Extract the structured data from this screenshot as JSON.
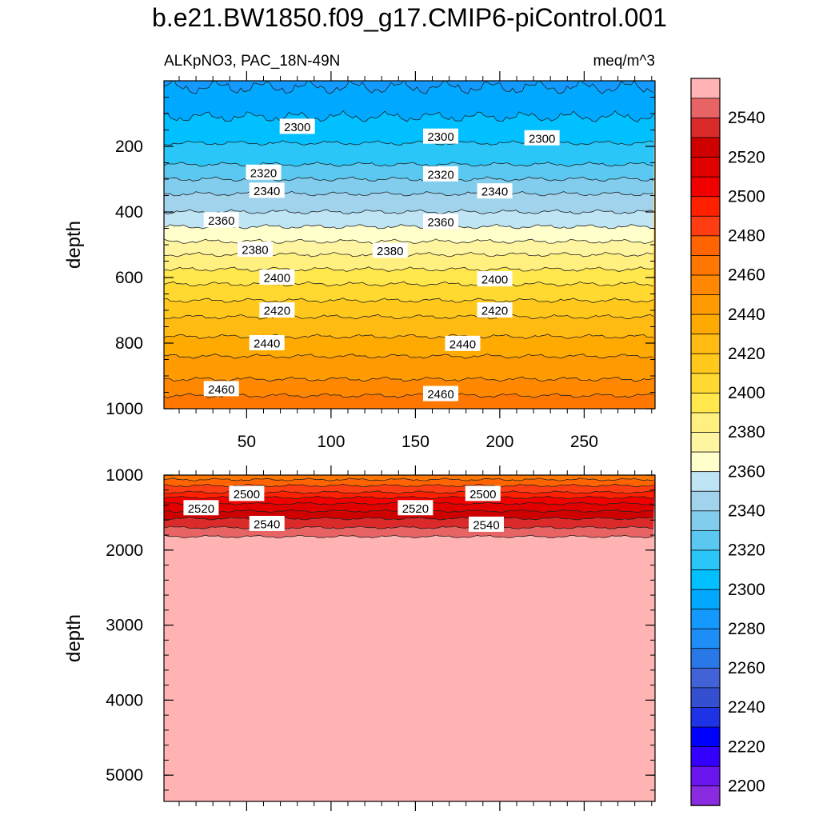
{
  "title": "b.e21.BW1850.f09_g17.CMIP6-piControl.001",
  "chart_data": [
    {
      "type": "contour",
      "panel": "upper",
      "subtitle_left": "ALKpNO3, PAC_18N-49N",
      "subtitle_right": "meq/m^3",
      "xlabel": "",
      "ylabel": "depth",
      "xlim": [
        1,
        292
      ],
      "ylim": [
        0,
        1000
      ],
      "y_inverted": true,
      "x_ticks": [
        "50",
        "100",
        "150",
        "200",
        "250"
      ],
      "y_ticks": [
        "200",
        "400",
        "600",
        "800",
        "1000"
      ],
      "contour_levels": [
        2290,
        2300,
        2310,
        2320,
        2330,
        2340,
        2350,
        2360,
        2370,
        2380,
        2390,
        2400,
        2410,
        2420,
        2430,
        2440,
        2450,
        2460
      ],
      "level_depths": [
        20,
        110,
        190,
        255,
        300,
        345,
        400,
        445,
        490,
        530,
        575,
        620,
        670,
        720,
        780,
        840,
        910,
        960
      ],
      "contour_labels": [
        {
          "text": "2300",
          "x": 80,
          "y": 140
        },
        {
          "text": "2300",
          "x": 165,
          "y": 170
        },
        {
          "text": "2300",
          "x": 225,
          "y": 175
        },
        {
          "text": "2320",
          "x": 60,
          "y": 280
        },
        {
          "text": "2320",
          "x": 165,
          "y": 285
        },
        {
          "text": "2340",
          "x": 62,
          "y": 335
        },
        {
          "text": "2340",
          "x": 197,
          "y": 337
        },
        {
          "text": "2360",
          "x": 35,
          "y": 425
        },
        {
          "text": "2360",
          "x": 165,
          "y": 430
        },
        {
          "text": "2380",
          "x": 55,
          "y": 515
        },
        {
          "text": "2380",
          "x": 135,
          "y": 518
        },
        {
          "text": "2400",
          "x": 68,
          "y": 600
        },
        {
          "text": "2400",
          "x": 197,
          "y": 605
        },
        {
          "text": "2420",
          "x": 68,
          "y": 700
        },
        {
          "text": "2420",
          "x": 197,
          "y": 700
        },
        {
          "text": "2440",
          "x": 62,
          "y": 800
        },
        {
          "text": "2440",
          "x": 178,
          "y": 802
        },
        {
          "text": "2460",
          "x": 35,
          "y": 940
        },
        {
          "text": "2460",
          "x": 165,
          "y": 955
        }
      ]
    },
    {
      "type": "contour",
      "panel": "lower",
      "xlabel": "",
      "ylabel": "depth",
      "xlim": [
        1,
        292
      ],
      "ylim": [
        1000,
        5350
      ],
      "y_inverted": true,
      "y_ticks": [
        "1000",
        "2000",
        "3000",
        "4000",
        "5000"
      ],
      "contour_levels": [
        2470,
        2480,
        2490,
        2500,
        2510,
        2520,
        2530,
        2540,
        2550
      ],
      "level_depths": [
        1060,
        1140,
        1230,
        1300,
        1380,
        1480,
        1580,
        1700,
        1820
      ],
      "contour_labels": [
        {
          "text": "2500",
          "x": 50,
          "y": 1250
        },
        {
          "text": "2520",
          "x": 23,
          "y": 1440
        },
        {
          "text": "2540",
          "x": 62,
          "y": 1650
        },
        {
          "text": "2500",
          "x": 190,
          "y": 1250
        },
        {
          "text": "2520",
          "x": 150,
          "y": 1440
        },
        {
          "text": "2540",
          "x": 192,
          "y": 1660
        }
      ]
    },
    {
      "type": "colorbar",
      "levels": [
        2190,
        2200,
        2210,
        2220,
        2230,
        2240,
        2250,
        2260,
        2270,
        2280,
        2290,
        2300,
        2310,
        2320,
        2330,
        2340,
        2350,
        2360,
        2370,
        2380,
        2390,
        2400,
        2410,
        2420,
        2430,
        2440,
        2450,
        2460,
        2470,
        2480,
        2490,
        2500,
        2510,
        2520,
        2530,
        2540,
        2550,
        2560
      ],
      "tick_labels": [
        "2200",
        "2220",
        "2240",
        "2260",
        "2280",
        "2300",
        "2320",
        "2340",
        "2360",
        "2380",
        "2400",
        "2420",
        "2440",
        "2460",
        "2480",
        "2500",
        "2520",
        "2540"
      ],
      "colors": [
        "#8a2be2",
        "#6a14ee",
        "#3300ff",
        "#0000ff",
        "#1e32e6",
        "#3450d0",
        "#4163d7",
        "#2a78e8",
        "#1e8ef7",
        "#1499ff",
        "#00a9ff",
        "#00c0ff",
        "#2bc6f8",
        "#5ac8f0",
        "#82ccee",
        "#a1d4ec",
        "#bfe4f4",
        "#ffffcc",
        "#fff4a0",
        "#fff080",
        "#ffe74c",
        "#ffd830",
        "#ffc81a",
        "#ffbb12",
        "#ffaa00",
        "#ff9a00",
        "#ff8800",
        "#ff7700",
        "#ff6400",
        "#ff3c12",
        "#ff2000",
        "#f20000",
        "#e10000",
        "#cf0000",
        "#db2a2a",
        "#e86464",
        "#ffb3b3"
      ]
    }
  ]
}
